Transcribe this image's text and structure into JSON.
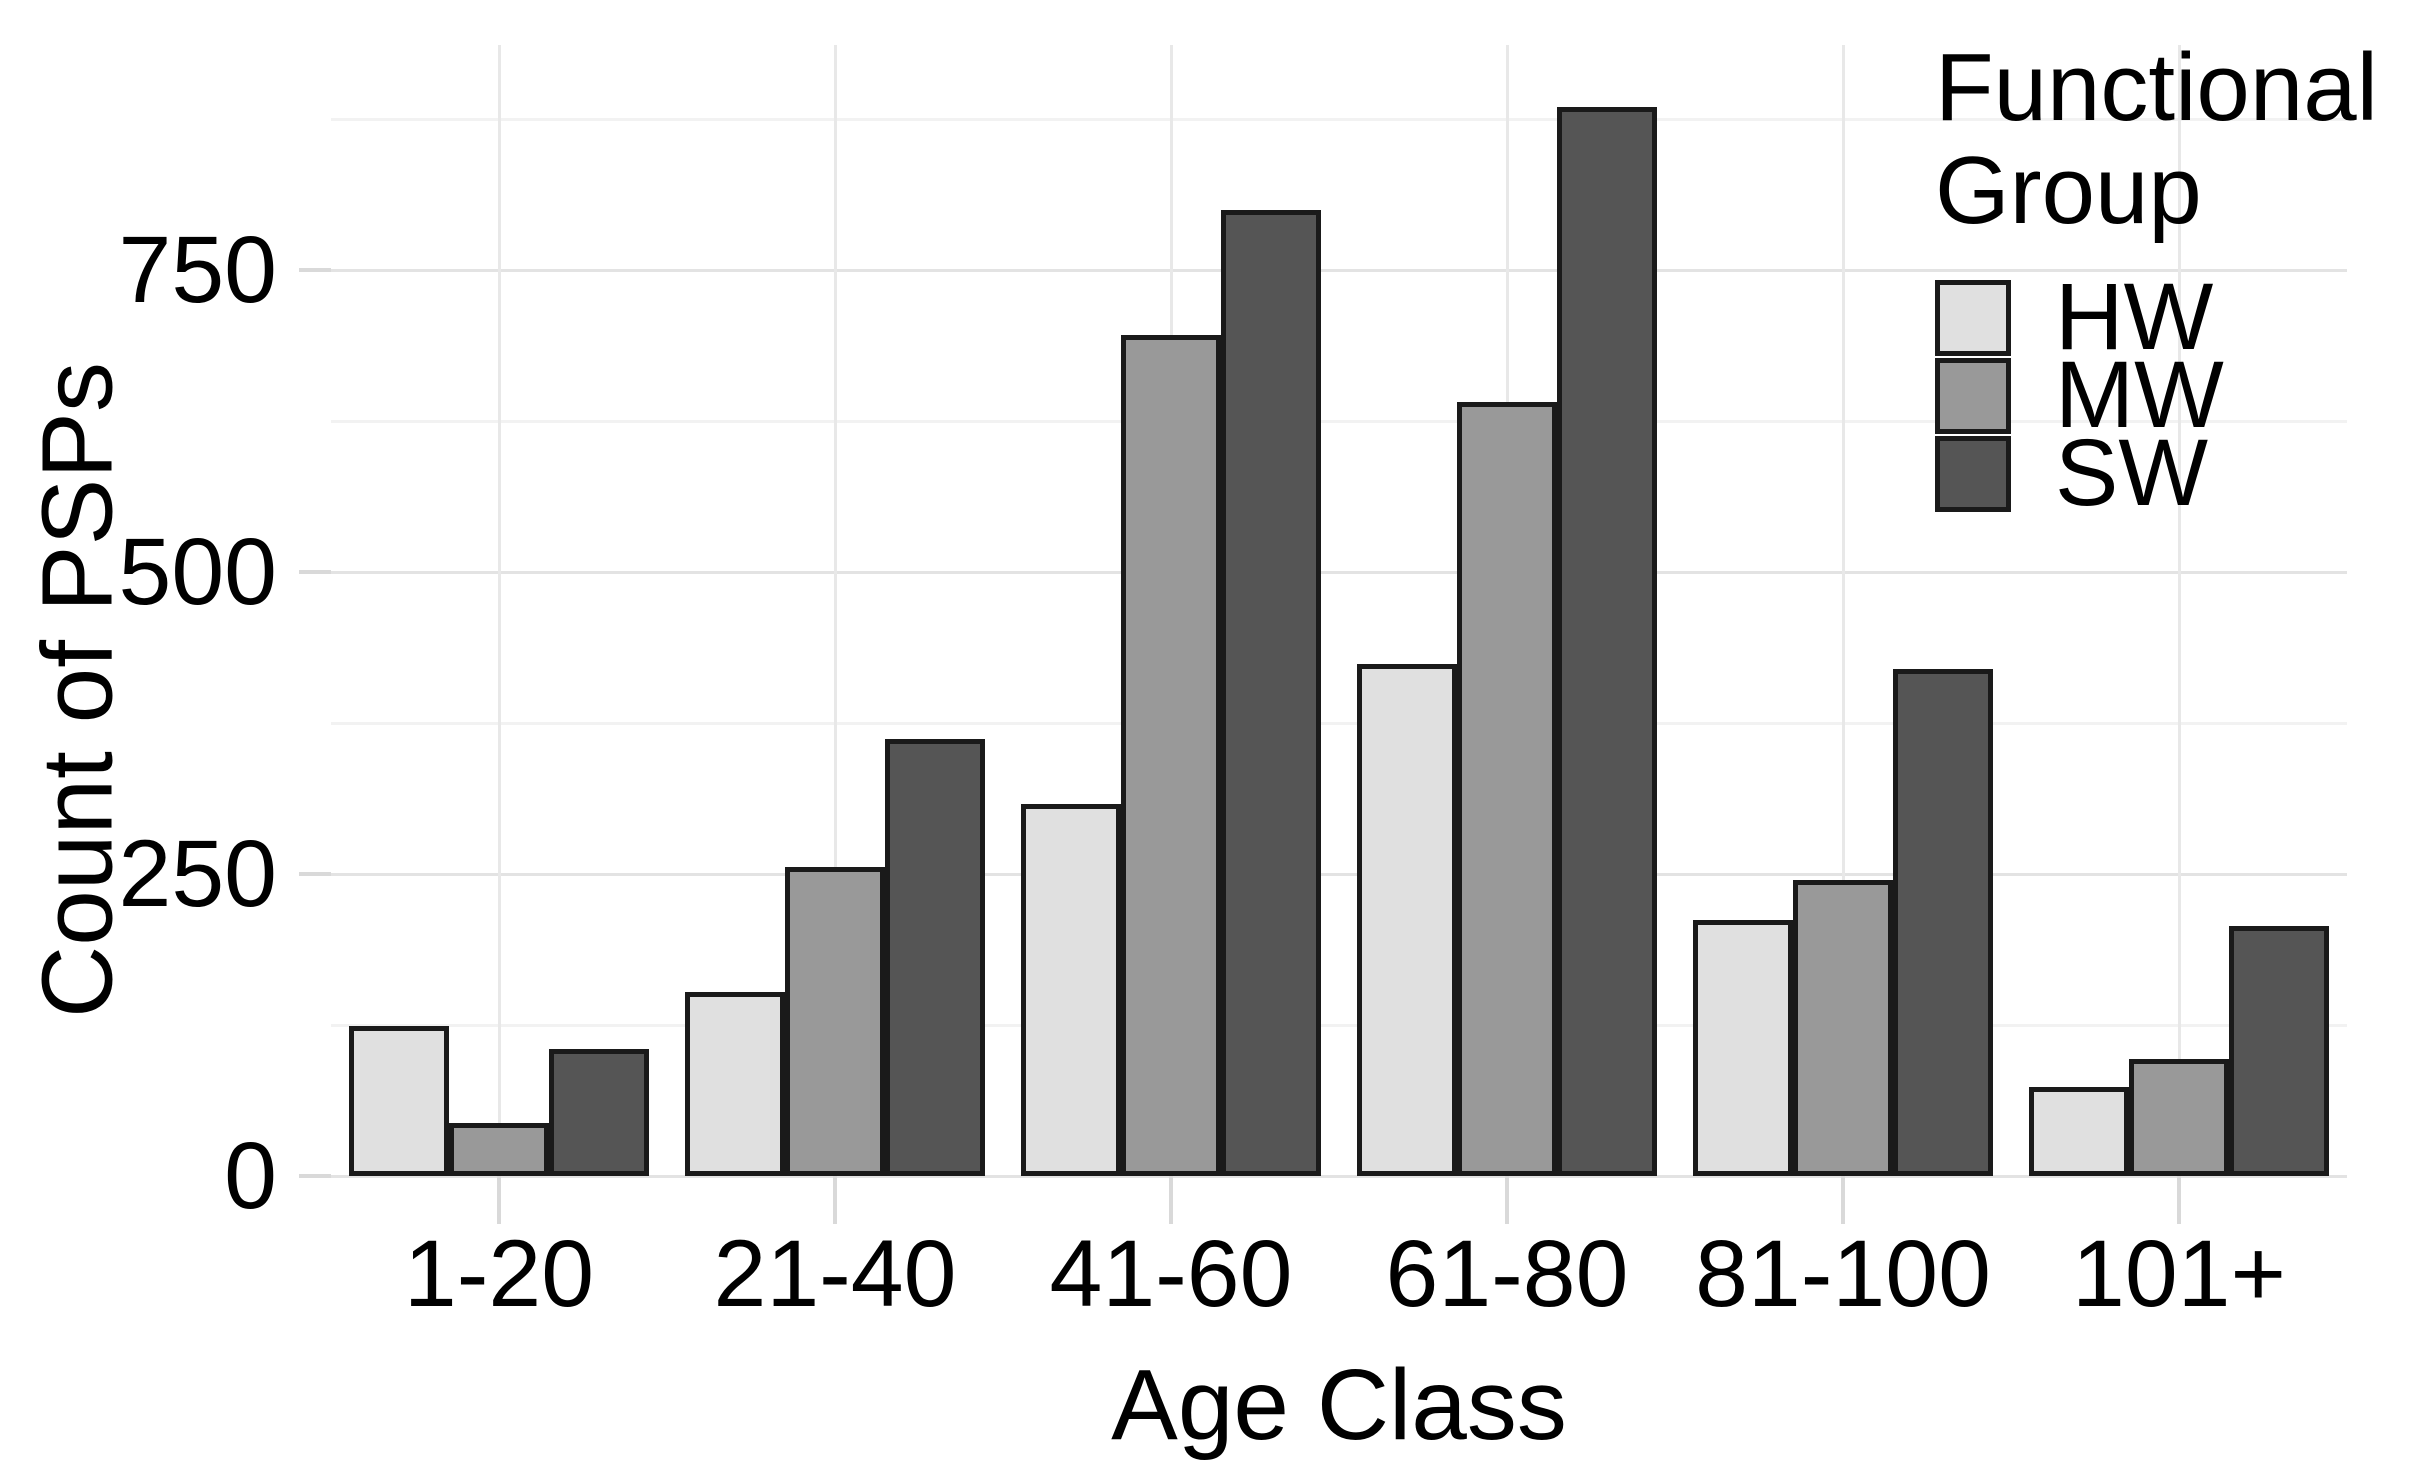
{
  "chart_data": {
    "type": "bar",
    "title": "",
    "xlabel": "Age Class",
    "ylabel": "Count of PSPs",
    "categories": [
      "1-20",
      "21-40",
      "41-60",
      "61-80",
      "81-100",
      "101+"
    ],
    "series": [
      {
        "name": "HW",
        "color": "#e0e0e0",
        "values": [
          124,
          152,
          308,
          424,
          212,
          74
        ]
      },
      {
        "name": "MW",
        "color": "#999999",
        "values": [
          44,
          256,
          696,
          641,
          245,
          97
        ]
      },
      {
        "name": "SW",
        "color": "#555555",
        "values": [
          105,
          362,
          800,
          885,
          420,
          207
        ]
      }
    ],
    "ylim": [
      0,
      935
    ],
    "y_major_ticks": [
      0,
      250,
      500,
      750
    ],
    "y_tick_labels": [
      "0",
      "250",
      "500",
      "750"
    ],
    "y_minor_gridlines": [
      125,
      375,
      625,
      875
    ],
    "grid": true,
    "legend": {
      "title": "Functional Group",
      "position": "top-right"
    },
    "style": {
      "bar_border_color": "#1a1a1a",
      "major_grid_color": "#e3e3e3",
      "minor_grid_color": "#f2f2f2",
      "vertical_grid_color": "#e8e8e8",
      "tick_color": "#d9d9d9",
      "text_color": "#000000"
    }
  }
}
